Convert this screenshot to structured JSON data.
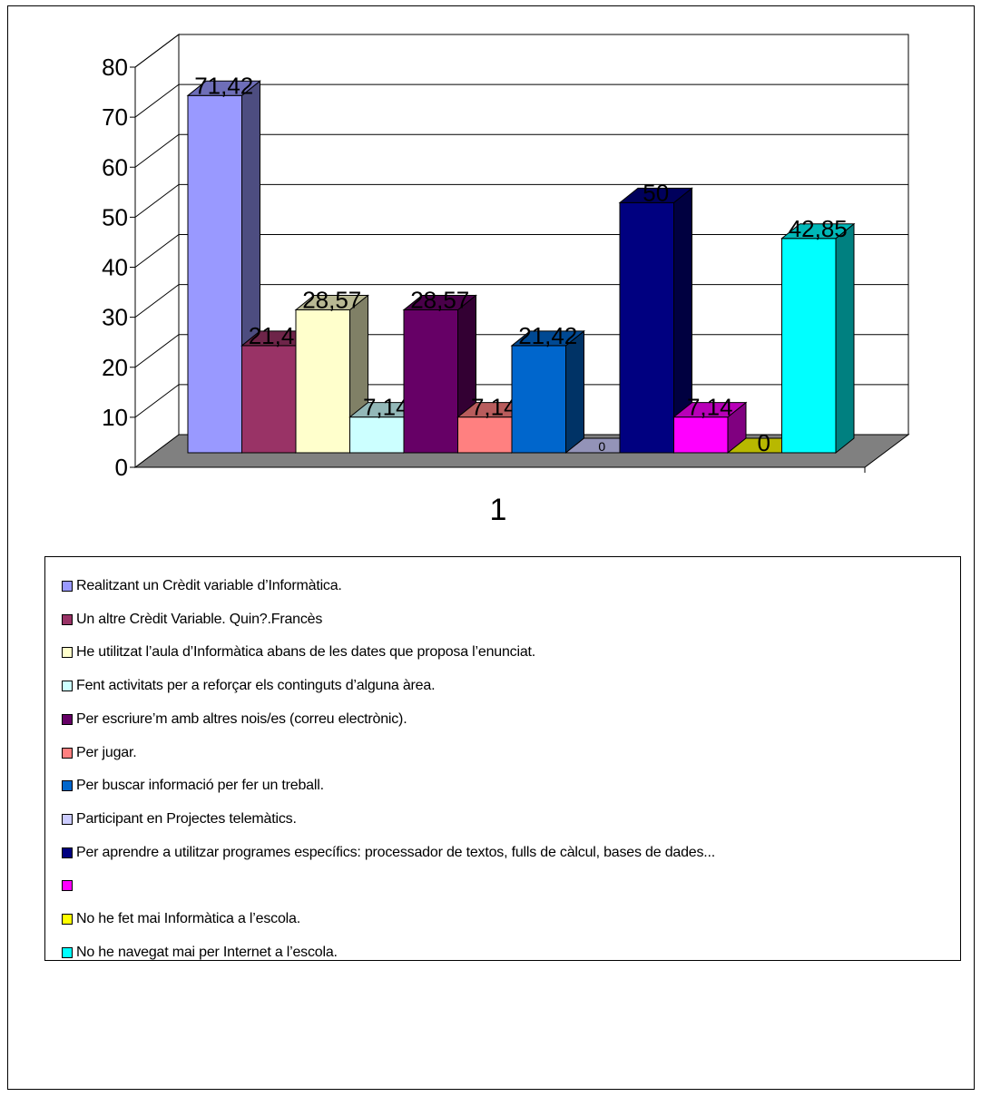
{
  "chart_data": {
    "type": "bar",
    "categories": [
      "1"
    ],
    "ylim": [
      0,
      80
    ],
    "yticks": [
      0,
      10,
      20,
      30,
      40,
      50,
      60,
      70,
      80
    ],
    "grid": true,
    "legend_position": "bottom",
    "series": [
      {
        "name": "Realitzant un Crèdit variable d’Informàtica.",
        "value": 71.42,
        "label": "71,42",
        "color": "#9999ff"
      },
      {
        "name": "Un altre Crèdit Variable. Quin?.Francès",
        "value": 21.42,
        "label": "21,42",
        "color": "#993366"
      },
      {
        "name": "He utilitzat l’aula d’Informàtica abans de les dates que proposa l’enunciat.",
        "value": 28.57,
        "label": "28,57",
        "color": "#ffffcc"
      },
      {
        "name": "Fent activitats per a reforçar els continguts d’alguna àrea.",
        "value": 7.14,
        "label": "7,14",
        "color": "#ccffff"
      },
      {
        "name": "Per escriure’m amb altres nois/es (correu electrònic).",
        "value": 28.57,
        "label": "28,57",
        "color": "#660066"
      },
      {
        "name": "Per jugar.",
        "value": 7.14,
        "label": "7,14",
        "color": "#ff8080"
      },
      {
        "name": "Per buscar informació per fer un treball.",
        "value": 21.42,
        "label": "21,42",
        "color": "#0066cc"
      },
      {
        "name": "Participant en Projectes telemàtics.",
        "value": 0,
        "label": "0",
        "color": "#ccccff"
      },
      {
        "name": "Per aprendre a utilitzar programes específics: processador de textos, fulls de càlcul, bases de dades...",
        "value": 50,
        "label": "50",
        "color": "#000080"
      },
      {
        "name": "",
        "value": 7.14,
        "label": "7,14",
        "color": "#ff00ff"
      },
      {
        "name": "No he fet mai Informàtica a l’escola.",
        "value": 0,
        "label": "0",
        "color": "#ffff00"
      },
      {
        "name": "No he navegat mai per Internet a l’escola.",
        "value": 42.85,
        "label": "42,85",
        "color": "#00ffff"
      }
    ]
  }
}
